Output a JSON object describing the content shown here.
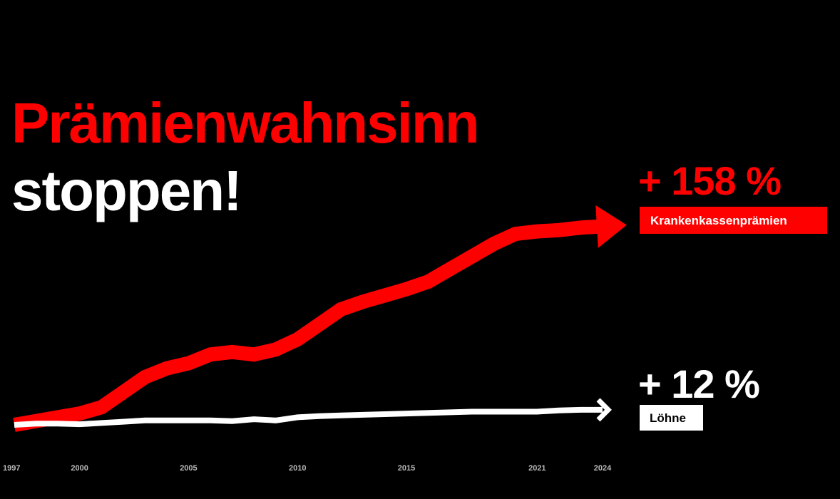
{
  "chart_data": {
    "type": "line",
    "title": "Prämienwahnsinn",
    "subtitle": "stoppen!",
    "x": [
      1997,
      1998,
      1999,
      2000,
      2001,
      2002,
      2003,
      2004,
      2005,
      2006,
      2007,
      2008,
      2009,
      2010,
      2011,
      2012,
      2013,
      2014,
      2015,
      2016,
      2017,
      2018,
      2019,
      2020,
      2021,
      2022,
      2023,
      2024
    ],
    "xlim": [
      1997,
      2024
    ],
    "xticks": [
      1997,
      2000,
      2005,
      2010,
      2015,
      2021,
      2024
    ],
    "ylim": [
      0,
      160
    ],
    "series": [
      {
        "name": "Krankenkassenprämien",
        "annotation": "+ 158 %",
        "color": "#ff0000",
        "values": [
          0,
          3,
          6,
          9,
          14,
          26,
          38,
          45,
          49,
          56,
          58,
          56,
          60,
          68,
          80,
          92,
          98,
          103,
          108,
          114,
          124,
          134,
          144,
          152,
          154,
          155,
          157,
          158
        ]
      },
      {
        "name": "Löhne",
        "annotation": "+ 12 %",
        "color": "#ffffff",
        "values": [
          0,
          1,
          1,
          0.5,
          1.5,
          2.5,
          3.5,
          3.5,
          3.5,
          3.5,
          3,
          4.5,
          3.5,
          6,
          7,
          7.5,
          8,
          8.5,
          9,
          9.5,
          10,
          10.5,
          10.5,
          10.5,
          10.5,
          11.5,
          12,
          12
        ]
      }
    ]
  }
}
